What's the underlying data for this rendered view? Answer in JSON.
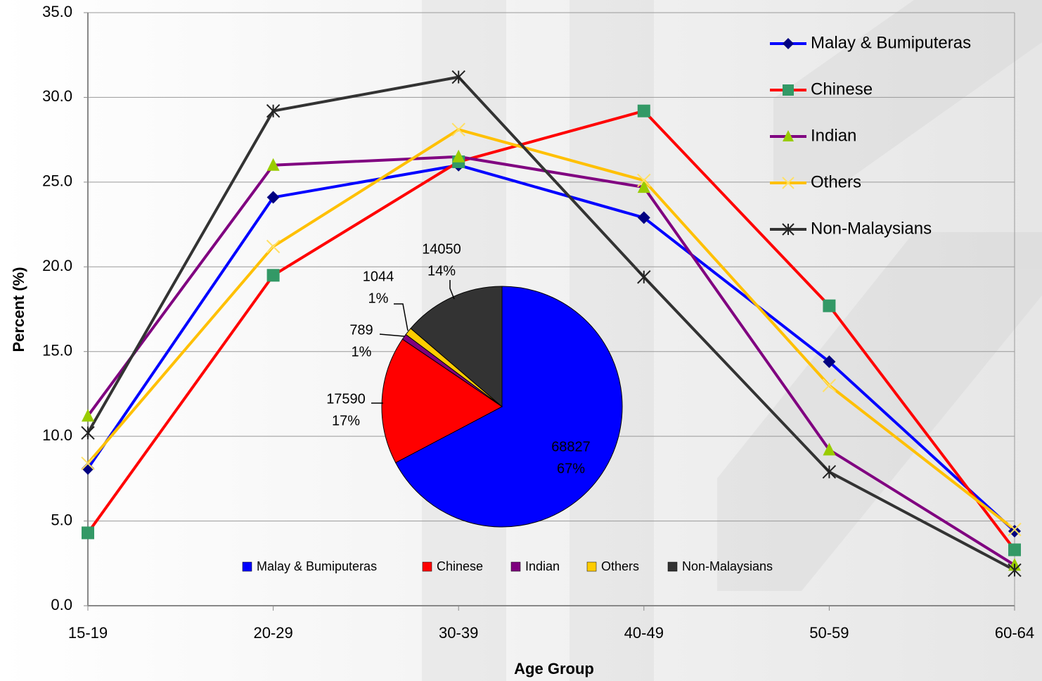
{
  "chart_data": [
    {
      "type": "line",
      "x_label": "Age Group",
      "y_label": "Percent (%)",
      "categories": [
        "15-19",
        "20-29",
        "30-39",
        "40-49",
        "50-59",
        "60-64"
      ],
      "ylim": [
        0,
        35
      ],
      "yticks": [
        {
          "value": 0,
          "label": "0.0"
        },
        {
          "value": 5,
          "label": "5.0"
        },
        {
          "value": 10,
          "label": "10.0"
        },
        {
          "value": 15,
          "label": "15.0"
        },
        {
          "value": 20,
          "label": "20.0"
        },
        {
          "value": 25,
          "label": "25.0"
        },
        {
          "value": 30,
          "label": "30.0"
        },
        {
          "value": 35,
          "label": "35.0"
        }
      ],
      "grid": true,
      "legend_position": "upper right",
      "series": [
        {
          "name": "Malay & Bumiputeras",
          "color": "#0000ff",
          "marker": "diamond",
          "marker_color": "#000080",
          "values": [
            8.1,
            24.1,
            26.0,
            22.9,
            14.4,
            4.4
          ]
        },
        {
          "name": "Chinese",
          "color": "#ff0000",
          "marker": "square",
          "marker_color": "#339966",
          "values": [
            4.3,
            19.5,
            26.2,
            29.2,
            17.7,
            3.3
          ]
        },
        {
          "name": "Indian",
          "color": "#800080",
          "marker": "triangle",
          "marker_color": "#99cc00",
          "values": [
            11.2,
            26.0,
            26.5,
            24.7,
            9.2,
            2.4
          ]
        },
        {
          "name": "Others",
          "color": "#ffc000",
          "marker": "x",
          "marker_color": "#ffe066",
          "values": [
            8.4,
            21.2,
            28.1,
            25.1,
            13.0,
            4.5
          ]
        },
        {
          "name": "Non-Malaysians",
          "color": "#333333",
          "marker": "star",
          "marker_color": "#222222",
          "values": [
            10.2,
            29.2,
            31.2,
            19.4,
            7.9,
            2.1
          ]
        }
      ]
    },
    {
      "type": "pie",
      "legend_position": "bottom",
      "categories": [
        "Malay & Bumiputeras",
        "Chinese",
        "Indian",
        "Others",
        "Non-Malaysians"
      ],
      "values": [
        68827,
        17590,
        789,
        1044,
        14050
      ],
      "percent_labels": [
        "67%",
        "17%",
        "1%",
        "1%",
        "14%"
      ],
      "colors": [
        "#0000ff",
        "#ff0000",
        "#7f007f",
        "#ffcc00",
        "#333333"
      ]
    }
  ]
}
